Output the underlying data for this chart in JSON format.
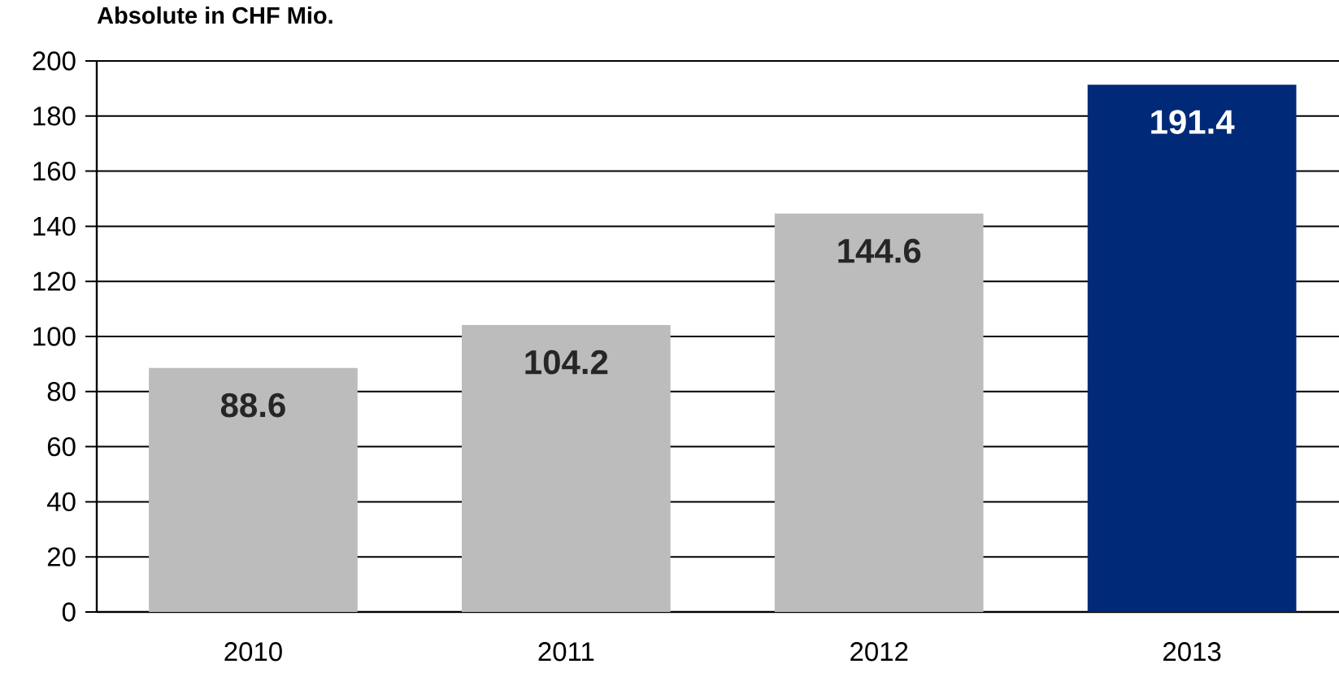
{
  "chart_data": {
    "type": "bar",
    "title": "Absolute in CHF Mio.",
    "categories": [
      "2010",
      "2011",
      "2012",
      "2013"
    ],
    "values": [
      88.6,
      104.2,
      144.6,
      191.4
    ],
    "colors": [
      "#bcbcbc",
      "#bcbcbc",
      "#bcbcbc",
      "#002a78"
    ],
    "ylim": [
      0,
      200
    ],
    "yticks": [
      0,
      20,
      40,
      60,
      80,
      100,
      120,
      140,
      160,
      180,
      200
    ],
    "grid": "y",
    "data_labels": true
  }
}
